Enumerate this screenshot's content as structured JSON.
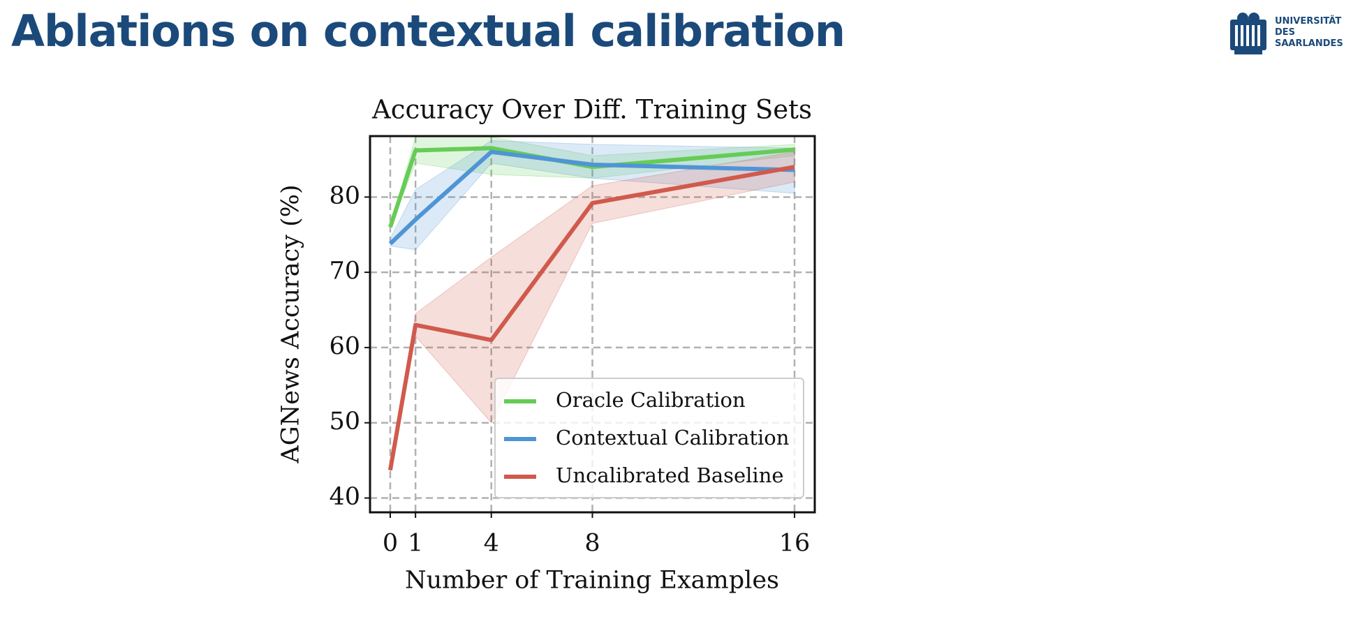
{
  "header": {
    "title": "Ablations on contextual calibration",
    "logo": [
      "UNIVERSITÄT",
      "DES",
      "SAARLANDES"
    ]
  },
  "chart_data": {
    "type": "line",
    "title": "Accuracy Over Diff. Training Sets",
    "x_label": "Number of Training Examples",
    "y_label": "AGNews Accuracy (%)",
    "x": [
      0,
      1,
      4,
      8,
      16
    ],
    "xlim": [
      -0.8,
      16.8
    ],
    "xticks": [
      0,
      1,
      4,
      8,
      16
    ],
    "ylim": [
      38.1,
      88.1
    ],
    "yticks": [
      40,
      50,
      60,
      70,
      80
    ],
    "grid": true,
    "legend": "lower right",
    "series": [
      {
        "name": "Oracle Calibration",
        "color": "#66cc55",
        "values": [
          76,
          86.2,
          86.5,
          84,
          86.3
        ],
        "lower": [
          76,
          84.5,
          83,
          82.5,
          85.5
        ],
        "upper": [
          76,
          88,
          88,
          85.5,
          87
        ]
      },
      {
        "name": "Contextual Calibration",
        "color": "#4f95d6",
        "values": [
          73.8,
          77,
          86,
          84.3,
          83.6
        ],
        "lower": [
          73.5,
          73,
          84.5,
          82.5,
          80.5
        ],
        "upper": [
          74.5,
          81,
          87.5,
          87,
          86.5
        ]
      },
      {
        "name": "Uncalibrated Baseline",
        "color": "#d05a4c",
        "values": [
          43.7,
          63,
          61,
          79.2,
          84
        ],
        "lower": [
          43.5,
          61.5,
          50,
          76.5,
          82
        ],
        "upper": [
          44,
          64.5,
          72,
          81.5,
          86
        ]
      }
    ]
  }
}
